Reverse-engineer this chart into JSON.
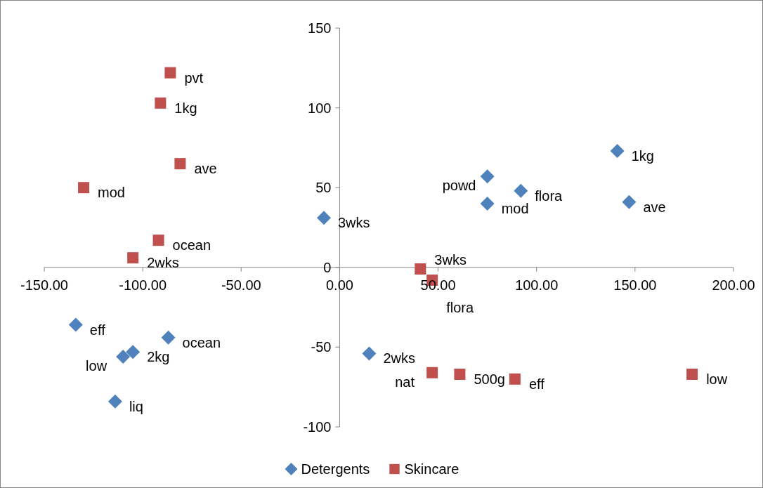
{
  "chart_data": {
    "type": "scatter",
    "legend": "bottom",
    "grid": false,
    "marker": "diamond",
    "xlim": [
      -150,
      200
    ],
    "ylim": [
      -100,
      150
    ],
    "xticks": [
      {
        "value": -150,
        "label": "-150.00"
      },
      {
        "value": -100,
        "label": "-100.00"
      },
      {
        "value": -50,
        "label": "-50.00"
      },
      {
        "value": 0,
        "label": "0.00"
      },
      {
        "value": 50,
        "label": "50.00"
      },
      {
        "value": 100,
        "label": "100.00"
      },
      {
        "value": 150,
        "label": "150.00"
      },
      {
        "value": 200,
        "label": "200.00"
      }
    ],
    "yticks": [
      -100,
      -50,
      0,
      50,
      100,
      150
    ],
    "series": [
      {
        "name": "Detergents",
        "color": "#4f81bd",
        "x": [
          -8,
          75,
          92,
          75,
          141,
          147,
          -134,
          -87,
          -105,
          -110,
          -114,
          15
        ],
        "values": [
          31,
          57,
          48,
          40,
          73,
          41,
          -36,
          -44,
          -53,
          -56,
          -84,
          -54
        ]
      },
      {
        "name": "Skincare",
        "color": "#c0504d",
        "marker": "square",
        "x": [
          -86,
          -91,
          -81,
          -130,
          -92,
          -105,
          41,
          47,
          47,
          61,
          89,
          179
        ],
        "values": [
          122,
          103,
          65,
          50,
          17,
          6,
          -1,
          -8,
          -66,
          -67,
          -70,
          -67
        ]
      }
    ],
    "annotations": [
      {
        "text": "3wks",
        "x": -8,
        "y": 31
      },
      {
        "text": "powd",
        "x": 75,
        "y": 57
      },
      {
        "text": "flora",
        "x": 92,
        "y": 48
      },
      {
        "text": "mod",
        "x": 75,
        "y": 40
      },
      {
        "text": "1kg",
        "x": 141,
        "y": 73
      },
      {
        "text": "ave",
        "x": 147,
        "y": 41
      },
      {
        "text": "eff",
        "x": -134,
        "y": -36
      },
      {
        "text": "ocean",
        "x": -87,
        "y": -44
      },
      {
        "text": "2kg",
        "x": -105,
        "y": -53
      },
      {
        "text": "low",
        "x": -110,
        "y": -56
      },
      {
        "text": "liq",
        "x": -114,
        "y": -84
      },
      {
        "text": "2wks",
        "x": 15,
        "y": -54
      },
      {
        "text": "pvt",
        "x": -86,
        "y": 122
      },
      {
        "text": "1kg",
        "x": -91,
        "y": 103
      },
      {
        "text": "ave",
        "x": -81,
        "y": 65
      },
      {
        "text": "mod",
        "x": -130,
        "y": 50
      },
      {
        "text": "ocean",
        "x": -92,
        "y": 17
      },
      {
        "text": "2wks",
        "x": -105,
        "y": 6
      },
      {
        "text": "3wks",
        "x": 41,
        "y": -1
      },
      {
        "text": "flora",
        "x": 47,
        "y": -8
      },
      {
        "text": "nat",
        "x": 47,
        "y": -66
      },
      {
        "text": "500g",
        "x": 61,
        "y": -67
      },
      {
        "text": "eff",
        "x": 89,
        "y": -70
      },
      {
        "text": "low",
        "x": 179,
        "y": -67
      }
    ]
  }
}
